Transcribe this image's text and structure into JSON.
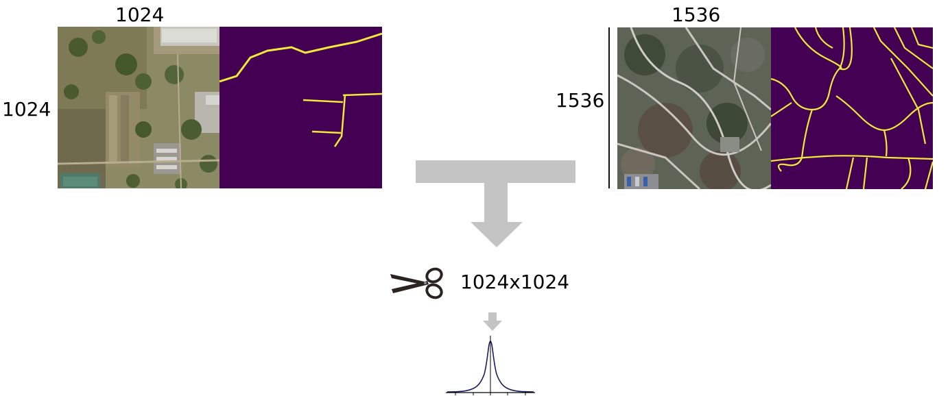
{
  "left_example": {
    "width_label": "1024",
    "height_label": "1024"
  },
  "right_example": {
    "width_label": "1536",
    "height_label": "1536"
  },
  "crop_step": {
    "size_label": "1024x1024",
    "icon": "scissors-icon"
  },
  "colors": {
    "mask_background": "#440154",
    "road_line": "#f2ea3a",
    "arrow": "#c4c4c4",
    "gaussian_curve": "#1a1a5e"
  }
}
